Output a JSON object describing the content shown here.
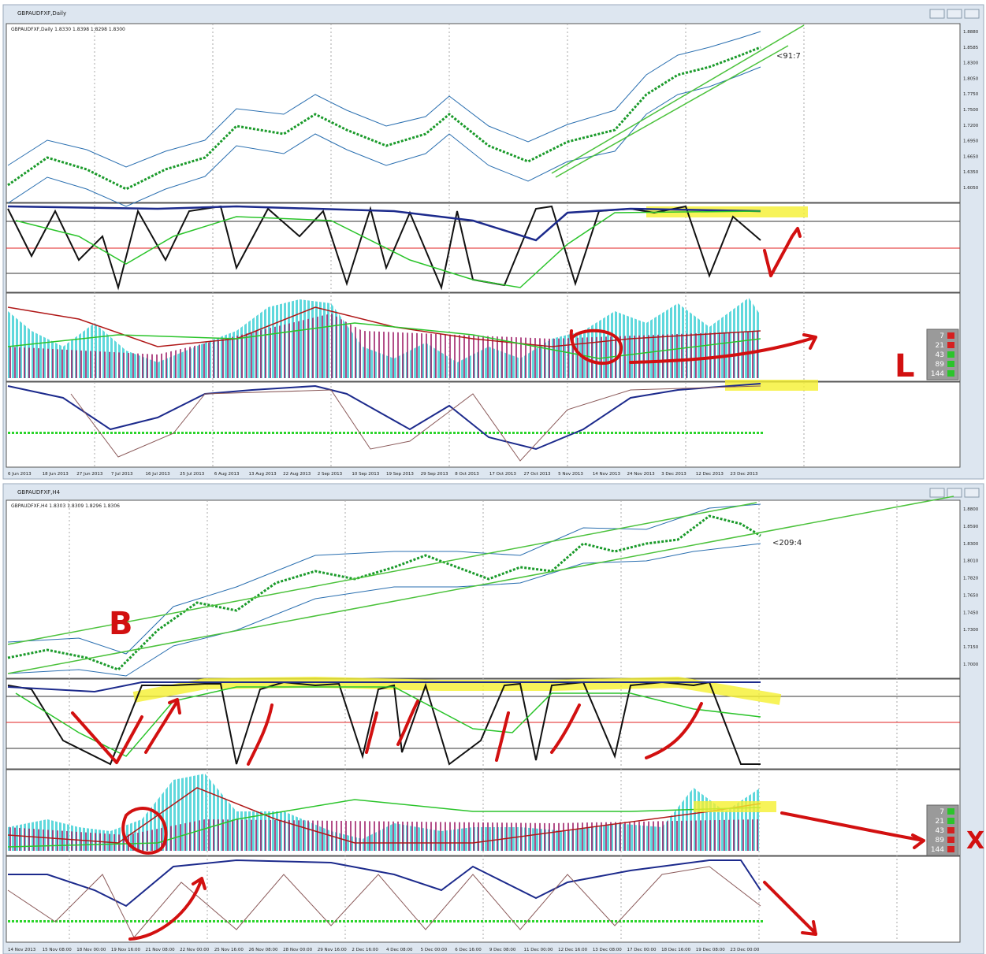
{
  "windows": [
    {
      "title": "GBPAUDFXF,Daily",
      "chart_label": "GBPAUDFXF,Daily 1.8330 1.8398 1.8298 1.8300",
      "annotation": "<91:7",
      "hand_mark": "L",
      "legend": [
        "7",
        "21",
        "43",
        "89",
        "144"
      ],
      "prices": [
        "1.8880",
        "1.8585",
        "1.8300",
        "1.8050",
        "1.7750",
        "1.7500",
        "1.7200",
        "1.6950",
        "1.6650",
        "1.6350",
        "1.6050"
      ],
      "dates": [
        "6 Jun 2013",
        "18 Jun 2013",
        "27 Jun 2013",
        "7 Jul 2013",
        "16 Jul 2013",
        "25 Jul 2013",
        "6 Aug 2013",
        "13 Aug 2013",
        "22 Aug 2013",
        "2 Sep 2013",
        "10 Sep 2013",
        "19 Sep 2013",
        "29 Sep 2013",
        "8 Oct 2013",
        "17 Oct 2013",
        "27 Oct 2013",
        "5 Nov 2013",
        "14 Nov 2013",
        "24 Nov 2013",
        "3 Dec 2013",
        "12 Dec 2013",
        "23 Dec 2013"
      ]
    },
    {
      "title": "GBPAUDFXF,H4",
      "chart_label": "GBPAUDFXF,H4 1.8303 1.8309 1.8296 1.8306",
      "annotation": "<209:4",
      "letter_mark": "B",
      "hand_mark": "X",
      "legend": [
        "7",
        "21",
        "43",
        "89",
        "144"
      ],
      "prices": [
        "1.8800",
        "1.8590",
        "1.8300",
        "1.8010",
        "1.7820",
        "1.7650",
        "1.7450",
        "1.7300",
        "1.7150",
        "1.7000"
      ],
      "dates": [
        "14 Nov 2013",
        "15 Nov 08:00",
        "18 Nov 00:00",
        "19 Nov 16:00",
        "21 Nov 08:00",
        "22 Nov 00:00",
        "25 Nov 16:00",
        "26 Nov 08:00",
        "28 Nov 00:00",
        "29 Nov 16:00",
        "2 Dec 16:00",
        "4 Dec 08:00",
        "5 Dec 00:00",
        "6 Dec 16:00",
        "9 Dec 08:00",
        "11 Dec 00:00",
        "12 Dec 16:00",
        "13 Dec 08:00",
        "17 Dec 00:00",
        "18 Dec 16:00",
        "19 Dec 08:00",
        "23 Dec 00:00"
      ]
    }
  ]
}
